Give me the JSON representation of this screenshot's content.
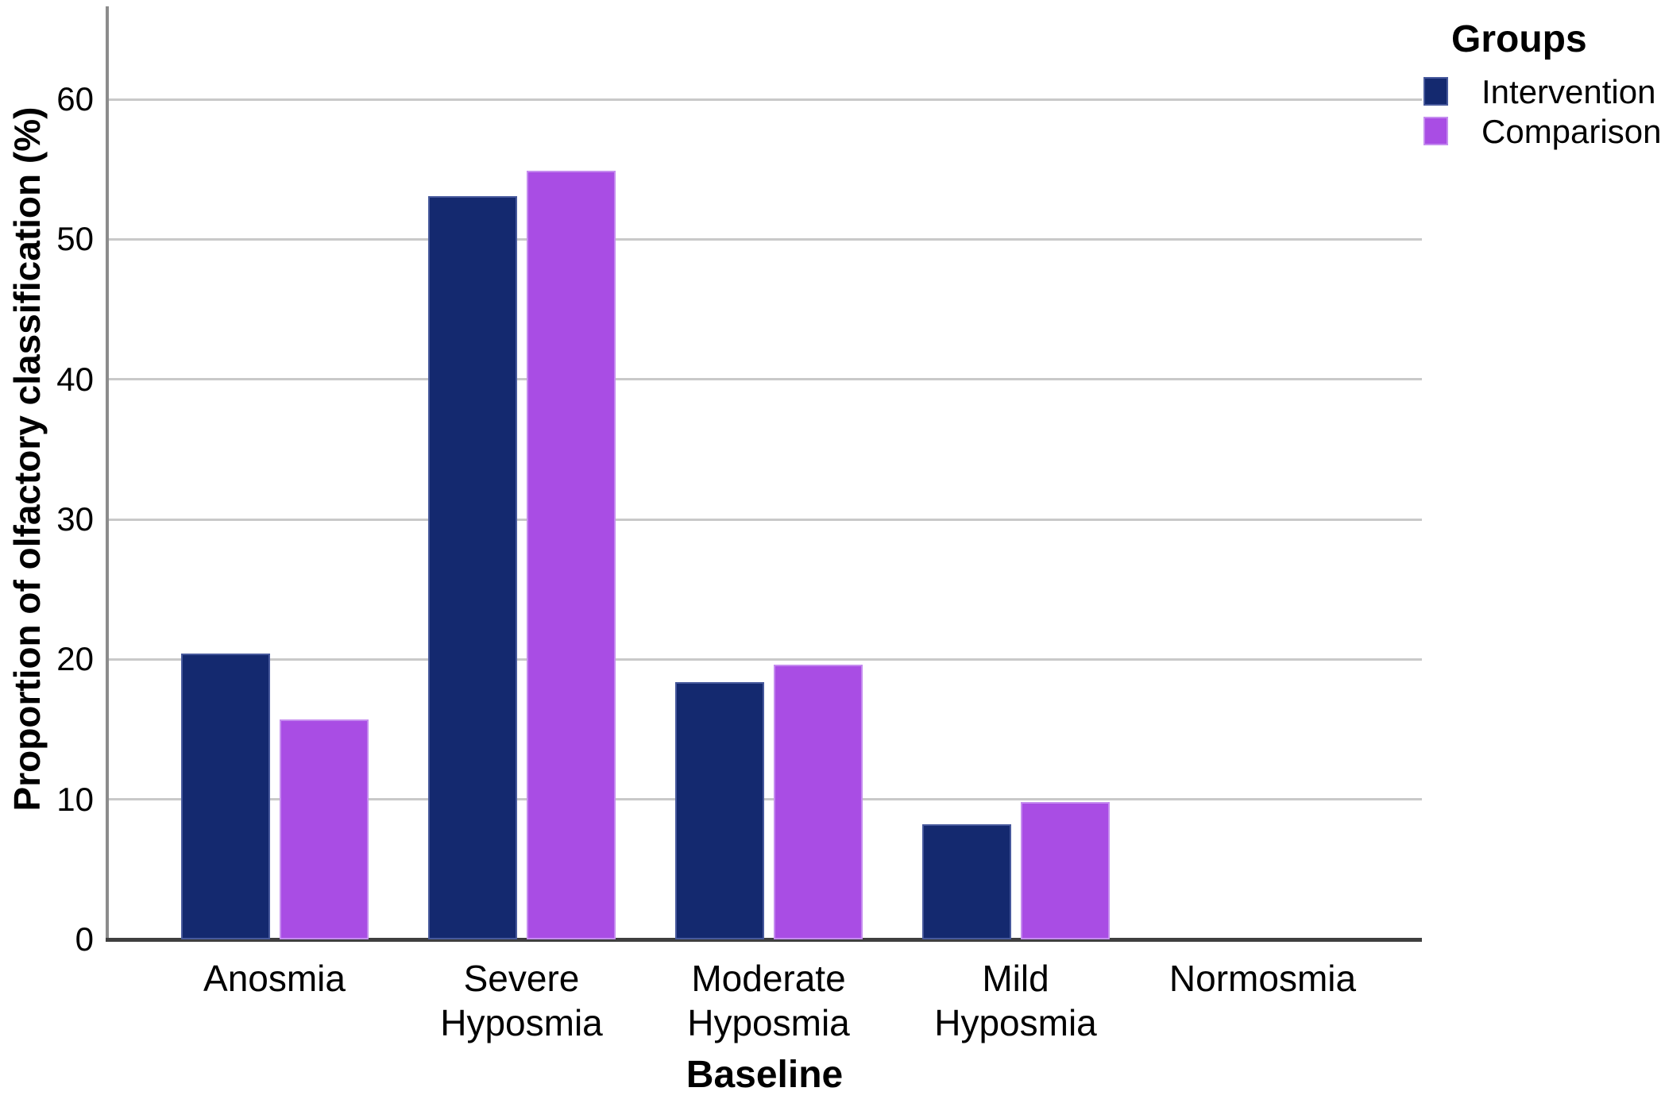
{
  "chart_data": {
    "type": "bar",
    "title": "",
    "xlabel": "Baseline",
    "ylabel": "Proportion of olfactory classification (%)",
    "categories": [
      "Anosmia",
      "Severe\nHyposmia",
      "Moderate\nHyposmia",
      "Mild\nHyposmia",
      "Normosmia"
    ],
    "series": [
      {
        "name": "Intervention",
        "color": "#14296f",
        "border_color": "#47599c",
        "values": [
          20.4,
          53.1,
          18.4,
          8.2,
          0
        ]
      },
      {
        "name": "Comparison",
        "color": "#a94de4",
        "border_color": "#c58cef",
        "values": [
          15.7,
          54.9,
          19.6,
          9.8,
          0
        ]
      }
    ],
    "yticks": [
      0,
      10,
      20,
      30,
      40,
      50,
      60
    ],
    "ylim": [
      0,
      66.6
    ],
    "grid": "horizontal-only",
    "legend": {
      "title": "Groups",
      "position": "top-right",
      "items": [
        "Intervention",
        "Comparison"
      ]
    }
  },
  "style_colors": {
    "background": "#ffffff",
    "gridline": "#c9c9c9",
    "y_axis_line": "#8c8c8c",
    "x_axis_line": "#3f3f3f",
    "text": "#000000"
  }
}
